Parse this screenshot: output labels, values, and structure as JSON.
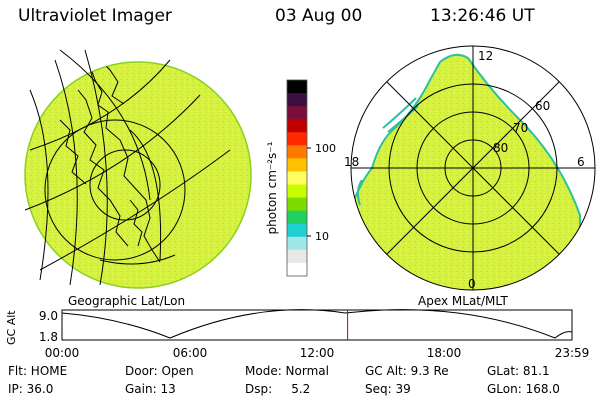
{
  "header": {
    "instrument": "Ultraviolet Imager",
    "date": "03 Aug 00",
    "time": "13:26:46 UT"
  },
  "geo_panel": {
    "caption": "Geographic Lat/Lon"
  },
  "polar_panel": {
    "caption": "Apex MLat/MLT",
    "mlt_labels": [
      "12",
      "18",
      "6",
      "0"
    ],
    "lat_labels": [
      "60",
      "70",
      "80"
    ]
  },
  "colorbar": {
    "unit_label": "photon cm⁻²s⁻¹",
    "tick_labels": [
      "100",
      "10"
    ],
    "colors": [
      "#000000",
      "#3a1040",
      "#7a0e3a",
      "#c00000",
      "#ff2a00",
      "#ff7a00",
      "#ffc000",
      "#ffff60",
      "#c8ff00",
      "#7cdc00",
      "#20d060",
      "#20d0d0",
      "#a0e8e8",
      "#e8e8e8",
      "#ffffff"
    ]
  },
  "timeline": {
    "y_label": "GC Alt",
    "y_ticks": [
      "9.0",
      "1.8"
    ],
    "x_ticks": [
      "00:00",
      "06:00",
      "12:00",
      "18:00",
      "23:59"
    ],
    "marker_color": "#cc0000",
    "current_fraction": 0.56
  },
  "info": {
    "row1": [
      "Flt: HOME",
      "Door: Open",
      "Mode: Normal",
      "GC Alt: 9.3 Re",
      "GLat: 81.1"
    ],
    "row2": [
      "IP: 36.0",
      "Gain: 13",
      "Dsp:     5.2",
      "Seq: 39",
      "GLon: 168.0"
    ]
  },
  "colors": {
    "fill": "#d8f040",
    "edge": "#8ad020",
    "rim": "#30c0a0"
  }
}
